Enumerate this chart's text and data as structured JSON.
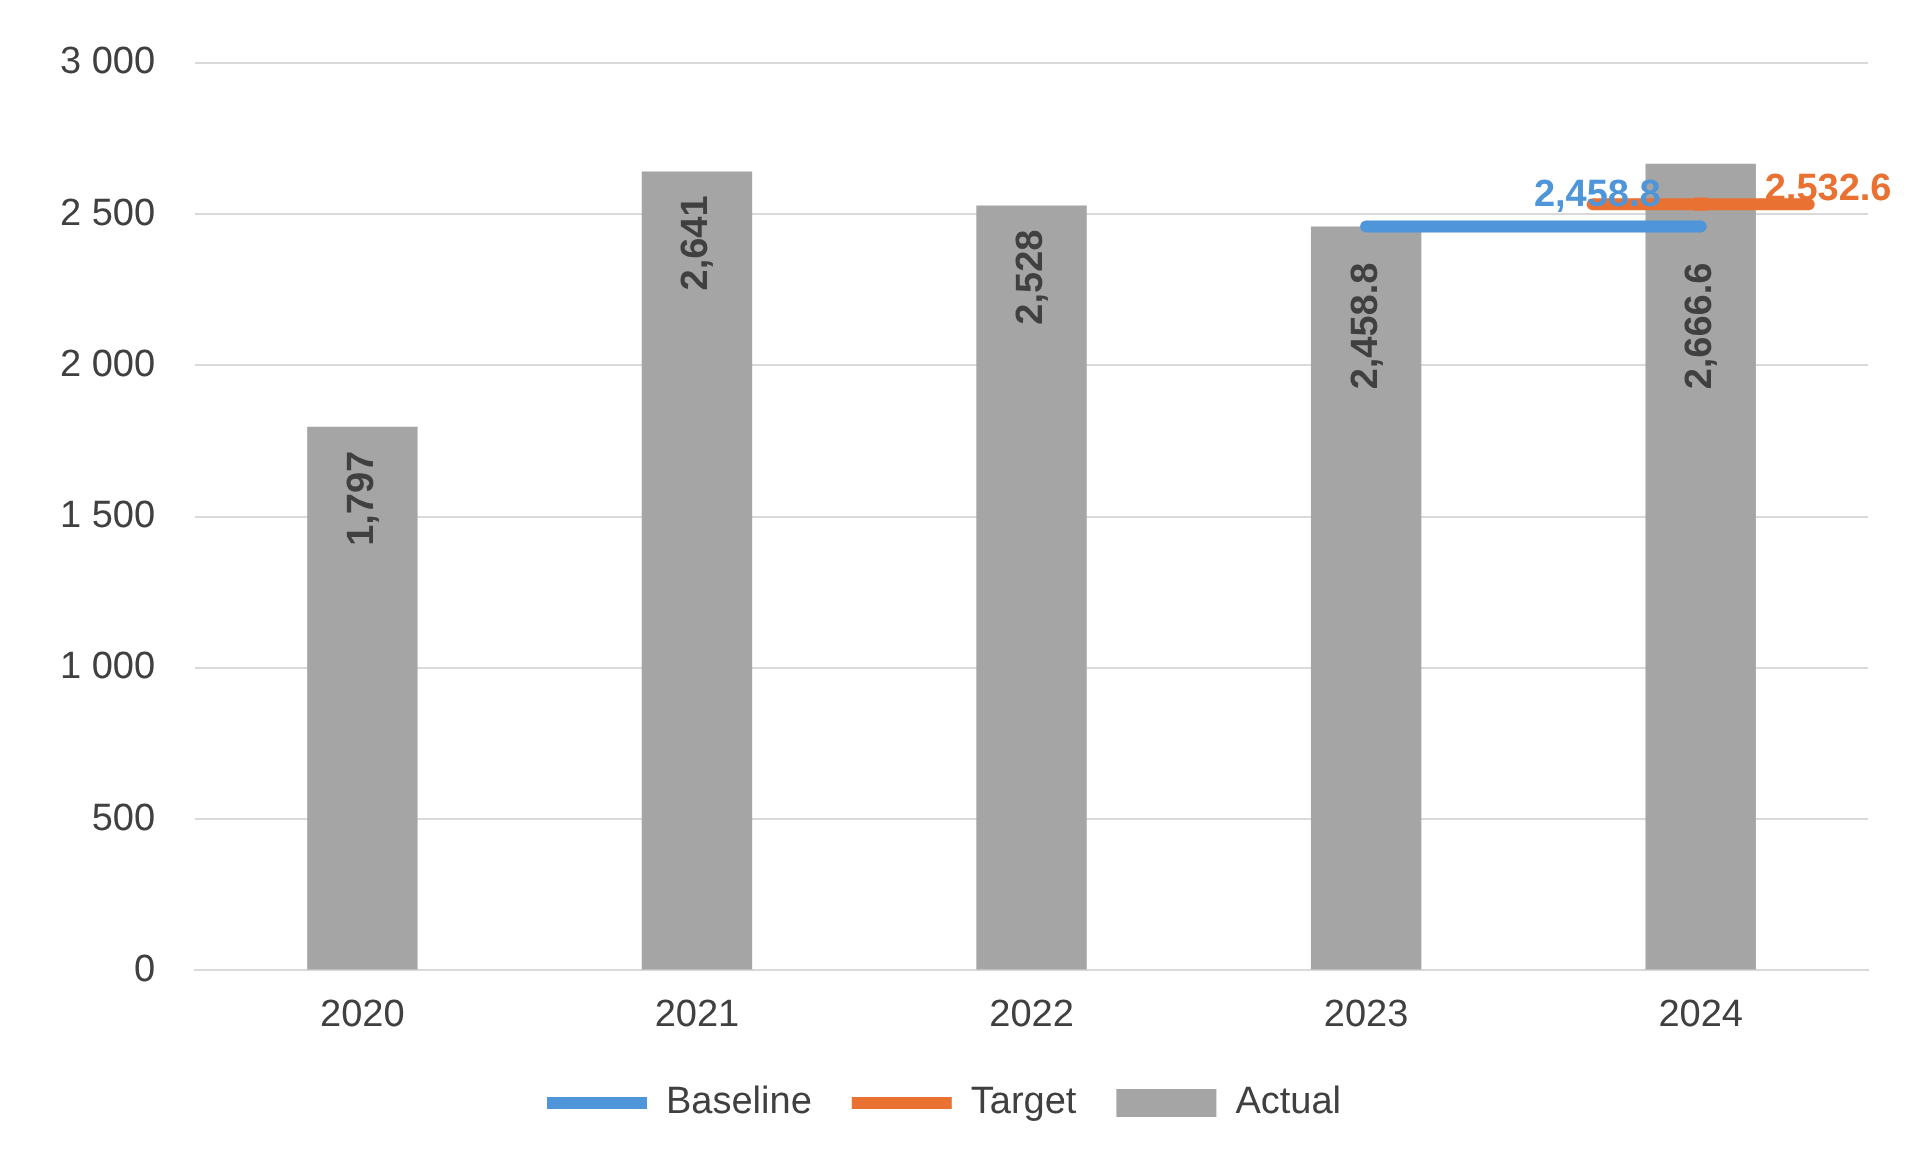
{
  "chart_data": {
    "type": "bar",
    "categories": [
      "2020",
      "2021",
      "2022",
      "2023",
      "2024"
    ],
    "series": [
      {
        "name": "Actual",
        "color": "#a5a5a5",
        "values": [
          1797,
          2641,
          2528,
          2458.8,
          2666.6
        ],
        "value_labels": [
          "1,797",
          "2,641",
          "2,528",
          "2,458.8",
          "2,666.6"
        ]
      },
      {
        "name": "Baseline",
        "type": "line",
        "color": "#4e95d9",
        "values": [
          null,
          null,
          null,
          2458.8,
          2458.8
        ],
        "value_labels": [
          null,
          null,
          null,
          null,
          "2,458.8"
        ]
      },
      {
        "name": "Target",
        "type": "line",
        "marker": "square",
        "color": "#e97132",
        "values": [
          null,
          null,
          null,
          null,
          2532.6
        ],
        "value_labels": [
          null,
          null,
          null,
          null,
          "2,532.6"
        ]
      }
    ],
    "ylim": [
      0,
      3000
    ],
    "yticks": [
      0,
      500,
      {
        "value": 1000,
        "label": "1 000"
      },
      {
        "value": 1500,
        "label": "1 500"
      },
      {
        "value": 2000,
        "label": "2 000"
      },
      {
        "value": 2500,
        "label": "2 500"
      },
      {
        "value": 3000,
        "label": "3 000"
      }
    ],
    "grid": "y",
    "legend": "bottom"
  }
}
